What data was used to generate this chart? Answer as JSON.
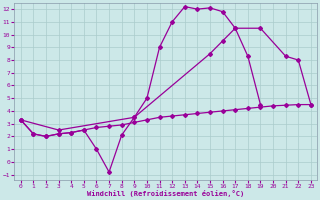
{
  "xlabel": "Windchill (Refroidissement éolien,°C)",
  "bg_color": "#cce8e8",
  "line_color": "#990099",
  "grid_color": "#aacccc",
  "xlim": [
    -0.5,
    23.5
  ],
  "ylim": [
    -1.4,
    12.5
  ],
  "xticks": [
    0,
    1,
    2,
    3,
    4,
    5,
    6,
    7,
    8,
    9,
    10,
    11,
    12,
    13,
    14,
    15,
    16,
    17,
    18,
    19,
    20,
    21,
    22,
    23
  ],
  "yticks": [
    -1,
    0,
    1,
    2,
    3,
    4,
    5,
    6,
    7,
    8,
    9,
    10,
    11,
    12
  ],
  "curve1_x": [
    0,
    1,
    2,
    3,
    4,
    5,
    6,
    7,
    8,
    9,
    10,
    11,
    12,
    13,
    14,
    15,
    16,
    17,
    18,
    19
  ],
  "curve1_y": [
    3.3,
    2.2,
    2.0,
    2.2,
    2.3,
    2.5,
    1.0,
    -0.8,
    2.1,
    3.5,
    5.0,
    9.0,
    11.0,
    12.2,
    12.0,
    12.1,
    11.8,
    10.5,
    8.3,
    4.5
  ],
  "curve2_x": [
    0,
    3,
    9,
    15,
    16,
    17,
    19,
    21,
    22,
    23
  ],
  "curve2_y": [
    3.3,
    2.5,
    3.5,
    8.5,
    9.5,
    10.5,
    10.5,
    8.3,
    8.0,
    4.5
  ],
  "curve3_x": [
    0,
    1,
    2,
    3,
    4,
    5,
    6,
    7,
    8,
    9,
    10,
    11,
    12,
    13,
    14,
    15,
    16,
    17,
    18,
    19,
    20,
    21,
    22,
    23
  ],
  "curve3_y": [
    3.3,
    2.2,
    2.0,
    2.2,
    2.3,
    2.5,
    2.7,
    2.8,
    2.9,
    3.1,
    3.3,
    3.5,
    3.6,
    3.7,
    3.8,
    3.9,
    4.0,
    4.1,
    4.2,
    4.3,
    4.4,
    4.45,
    4.5,
    4.5
  ]
}
